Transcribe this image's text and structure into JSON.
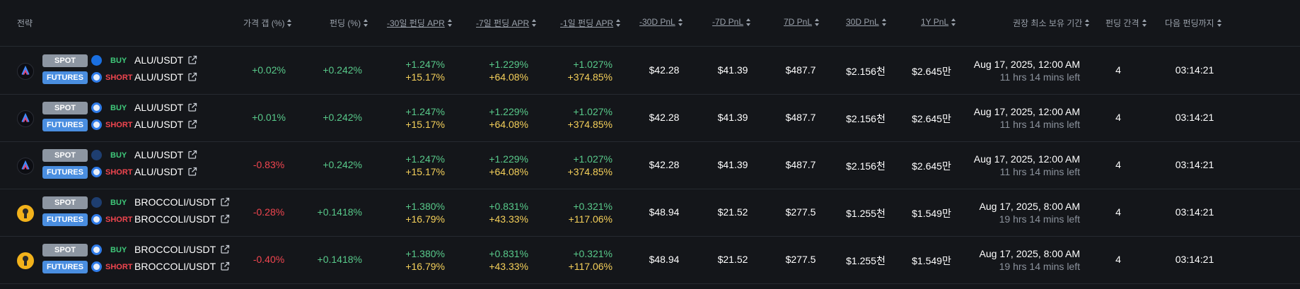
{
  "header": {
    "strategy": "전략",
    "price_gap": "가격 갭 (%)",
    "funding": "펀딩 (%)",
    "apr_30d": "-30일 펀딩 APR",
    "apr_7d": "-7일 펀딩 APR",
    "apr_1d": "-1일 펀딩 APR",
    "pnl_30d_past": "-30D PnL",
    "pnl_7d_past": "-7D PnL",
    "pnl_7d": "7D PnL",
    "pnl_30d": "30D PnL",
    "pnl_1y": "1Y PnL",
    "min_hold": "권장 최소 보유 기간",
    "interval": "펀딩 간격",
    "next_funding": "다음 펀딩까지"
  },
  "rows": [
    {
      "coin_icon": "alu-logo-icon",
      "spot_label": "SPOT",
      "futures_label": "FUTURES",
      "spot_exchange_icon": "flame-exchange-icon",
      "futures_exchange_icon": "swirl-exchange-icon",
      "buy_label": "BUY",
      "short_label": "SHORT",
      "spot_pair": "ALU/USDT",
      "futures_pair": "ALU/USDT",
      "price_gap": "+0.02%",
      "price_gap_sign": "pos",
      "funding": "+0.242%",
      "apr_30d_a": "+1.247%",
      "apr_30d_b": "+15.17%",
      "apr_7d_a": "+1.229%",
      "apr_7d_b": "+64.08%",
      "apr_1d_a": "+1.027%",
      "apr_1d_b": "+374.85%",
      "pnl_30d_past": "$42.28",
      "pnl_7d_past": "$41.39",
      "pnl_7d": "$487.7",
      "pnl_30d": "$2.156천",
      "pnl_1y": "$2.645만",
      "hold_date": "Aug 17, 2025, 12:00 AM",
      "hold_left": "11 hrs 14 mins left",
      "interval": "4",
      "next": "03:14:21"
    },
    {
      "coin_icon": "alu-logo-icon",
      "spot_label": "SPOT",
      "futures_label": "FUTURES",
      "spot_exchange_icon": "swirl-exchange-icon",
      "futures_exchange_icon": "swirl-exchange-icon",
      "buy_label": "BUY",
      "short_label": "SHORT",
      "spot_pair": "ALU/USDT",
      "futures_pair": "ALU/USDT",
      "price_gap": "+0.01%",
      "price_gap_sign": "pos",
      "funding": "+0.242%",
      "apr_30d_a": "+1.247%",
      "apr_30d_b": "+15.17%",
      "apr_7d_a": "+1.229%",
      "apr_7d_b": "+64.08%",
      "apr_1d_a": "+1.027%",
      "apr_1d_b": "+374.85%",
      "pnl_30d_past": "$42.28",
      "pnl_7d_past": "$41.39",
      "pnl_7d": "$487.7",
      "pnl_30d": "$2.156천",
      "pnl_1y": "$2.645만",
      "hold_date": "Aug 17, 2025, 12:00 AM",
      "hold_left": "11 hrs 14 mins left",
      "interval": "4",
      "next": "03:14:21"
    },
    {
      "coin_icon": "alu-logo-icon",
      "spot_label": "SPOT",
      "futures_label": "FUTURES",
      "spot_exchange_icon": "mountain-exchange-icon",
      "futures_exchange_icon": "swirl-exchange-icon",
      "buy_label": "BUY",
      "short_label": "SHORT",
      "spot_pair": "ALU/USDT",
      "futures_pair": "ALU/USDT",
      "price_gap": "-0.83%",
      "price_gap_sign": "neg",
      "funding": "+0.242%",
      "apr_30d_a": "+1.247%",
      "apr_30d_b": "+15.17%",
      "apr_7d_a": "+1.229%",
      "apr_7d_b": "+64.08%",
      "apr_1d_a": "+1.027%",
      "apr_1d_b": "+374.85%",
      "pnl_30d_past": "$42.28",
      "pnl_7d_past": "$41.39",
      "pnl_7d": "$487.7",
      "pnl_30d": "$2.156천",
      "pnl_1y": "$2.645만",
      "hold_date": "Aug 17, 2025, 12:00 AM",
      "hold_left": "11 hrs 14 mins left",
      "interval": "4",
      "next": "03:14:21"
    },
    {
      "coin_icon": "broccoli-logo-icon",
      "spot_label": "SPOT",
      "futures_label": "FUTURES",
      "spot_exchange_icon": "mountain-exchange-icon",
      "futures_exchange_icon": "swirl-exchange-icon",
      "buy_label": "BUY",
      "short_label": "SHORT",
      "spot_pair": "BROCCOLI/USDT",
      "futures_pair": "BROCCOLI/USDT",
      "price_gap": "-0.28%",
      "price_gap_sign": "neg",
      "funding": "+0.1418%",
      "apr_30d_a": "+1.380%",
      "apr_30d_b": "+16.79%",
      "apr_7d_a": "+0.831%",
      "apr_7d_b": "+43.33%",
      "apr_1d_a": "+0.321%",
      "apr_1d_b": "+117.06%",
      "pnl_30d_past": "$48.94",
      "pnl_7d_past": "$21.52",
      "pnl_7d": "$277.5",
      "pnl_30d": "$1.255천",
      "pnl_1y": "$1.549만",
      "hold_date": "Aug 17, 2025, 8:00 AM",
      "hold_left": "19 hrs 14 mins left",
      "interval": "4",
      "next": "03:14:21"
    },
    {
      "coin_icon": "broccoli-logo-icon",
      "spot_label": "SPOT",
      "futures_label": "FUTURES",
      "spot_exchange_icon": "swirl-exchange-icon",
      "futures_exchange_icon": "swirl-exchange-icon",
      "buy_label": "BUY",
      "short_label": "SHORT",
      "spot_pair": "BROCCOLI/USDT",
      "futures_pair": "BROCCOLI/USDT",
      "price_gap": "-0.40%",
      "price_gap_sign": "neg",
      "funding": "+0.1418%",
      "apr_30d_a": "+1.380%",
      "apr_30d_b": "+16.79%",
      "apr_7d_a": "+0.831%",
      "apr_7d_b": "+43.33%",
      "apr_1d_a": "+0.321%",
      "apr_1d_b": "+117.06%",
      "pnl_30d_past": "$48.94",
      "pnl_7d_past": "$21.52",
      "pnl_7d": "$277.5",
      "pnl_30d": "$1.255천",
      "pnl_1y": "$1.549만",
      "hold_date": "Aug 17, 2025, 8:00 AM",
      "hold_left": "19 hrs 14 mins left",
      "interval": "4",
      "next": "03:14:21"
    }
  ],
  "colors": {
    "positive": "#58c98a",
    "negative": "#f0454f",
    "highlight": "#f5d05a",
    "spot_badge": "#8d96a2",
    "futures_badge": "#4a8ee0"
  }
}
